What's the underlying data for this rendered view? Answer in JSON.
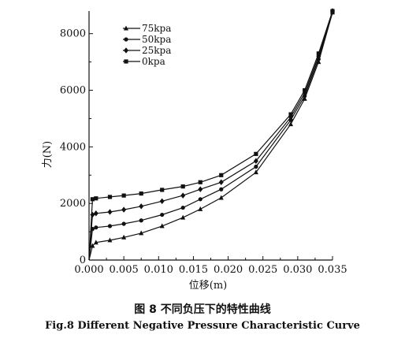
{
  "chart_data": {
    "type": "line",
    "xlabel": "位移(m)",
    "ylabel": "力(N)",
    "xlim": [
      0,
      0.035
    ],
    "ylim": [
      0,
      8800
    ],
    "x_ticks": [
      "0.000",
      "0.005",
      "0.010",
      "0.015",
      "0.020",
      "0.025",
      "0.030",
      "0.035"
    ],
    "y_ticks": [
      "0",
      "2000",
      "4000",
      "6000",
      "8000"
    ],
    "legend_position": "top-left",
    "grid": false,
    "series": [
      {
        "name": "75kpa",
        "marker": "triangle",
        "x": [
          0,
          0.0005,
          0.001,
          0.003,
          0.005,
          0.0075,
          0.0105,
          0.0135,
          0.016,
          0.019,
          0.024,
          0.029,
          0.031,
          0.033,
          0.035
        ],
        "y": [
          0,
          500,
          620,
          700,
          800,
          950,
          1200,
          1500,
          1800,
          2200,
          3100,
          4800,
          5700,
          7000,
          8750
        ]
      },
      {
        "name": "50kpa",
        "marker": "circle",
        "x": [
          0,
          0.0005,
          0.001,
          0.003,
          0.005,
          0.0075,
          0.0105,
          0.0135,
          0.016,
          0.019,
          0.024,
          0.029,
          0.031,
          0.033,
          0.035
        ],
        "y": [
          0,
          1100,
          1150,
          1200,
          1280,
          1400,
          1600,
          1850,
          2150,
          2500,
          3300,
          4950,
          5800,
          7100,
          8750
        ]
      },
      {
        "name": "25kpa",
        "marker": "diamond",
        "x": [
          0,
          0.0005,
          0.001,
          0.003,
          0.005,
          0.0075,
          0.0105,
          0.0135,
          0.016,
          0.019,
          0.024,
          0.029,
          0.031,
          0.033,
          0.035
        ],
        "y": [
          0,
          1600,
          1650,
          1700,
          1780,
          1900,
          2080,
          2280,
          2500,
          2750,
          3500,
          5050,
          5900,
          7200,
          8800
        ]
      },
      {
        "name": "0kpa",
        "marker": "square",
        "x": [
          0,
          0.0005,
          0.001,
          0.003,
          0.005,
          0.0075,
          0.0105,
          0.0135,
          0.016,
          0.019,
          0.024,
          0.029,
          0.031,
          0.033,
          0.035
        ],
        "y": [
          0,
          2150,
          2180,
          2230,
          2280,
          2350,
          2480,
          2600,
          2750,
          3000,
          3750,
          5150,
          6000,
          7300,
          8800
        ]
      }
    ]
  },
  "caption": {
    "chinese": "图 8 不同负压下的特性曲线",
    "english": "Fig.8 Different Negative Pressure Characteristic Curve"
  }
}
